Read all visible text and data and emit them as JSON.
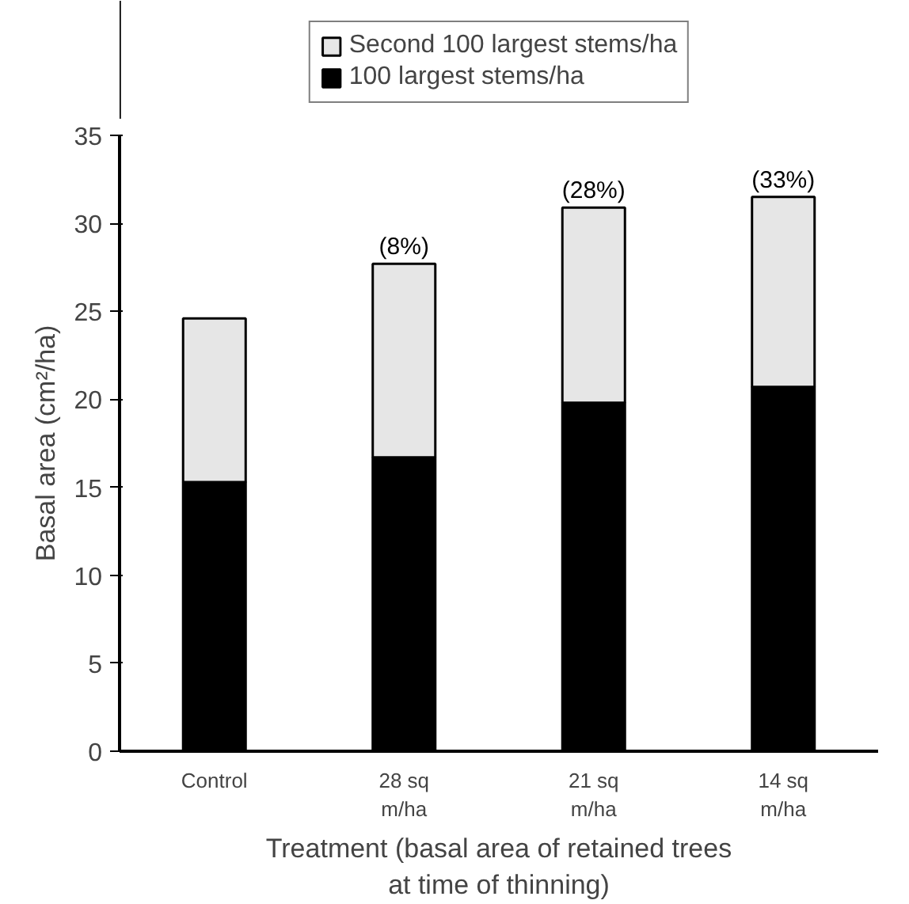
{
  "chart_data": {
    "type": "bar",
    "stacked": true,
    "categories": [
      "Control",
      "28 sq\nm/ha",
      "21 sq\nm/ha",
      "14 sq\nm/ha"
    ],
    "series": [
      {
        "name": "100 largest stems/ha",
        "color": "#000000",
        "values": [
          15.3,
          16.7,
          19.8,
          20.7
        ]
      },
      {
        "name": "Second 100 largest stems/ha",
        "color": "#e6e6e6",
        "values": [
          9.3,
          11.0,
          11.1,
          10.8
        ]
      }
    ],
    "xlabel": "Treatment (basal area of retained trees\nat time of thinning)",
    "ylabel": "Basal area (cm²/ha)",
    "ylim": [
      0,
      35
    ],
    "yticks": [
      0,
      5,
      10,
      15,
      20,
      25,
      30,
      35
    ],
    "annotations": [
      {
        "text": "(8%)",
        "x": "28 sq\nm/ha",
        "y": 27.7
      },
      {
        "text": "(28%)",
        "x": "21 sq\nm/ha",
        "y": 30.9
      },
      {
        "text": "(33%)",
        "x": "14 sq\nm/ha",
        "y": 31.5
      }
    ],
    "grid": false,
    "legend": "top"
  }
}
